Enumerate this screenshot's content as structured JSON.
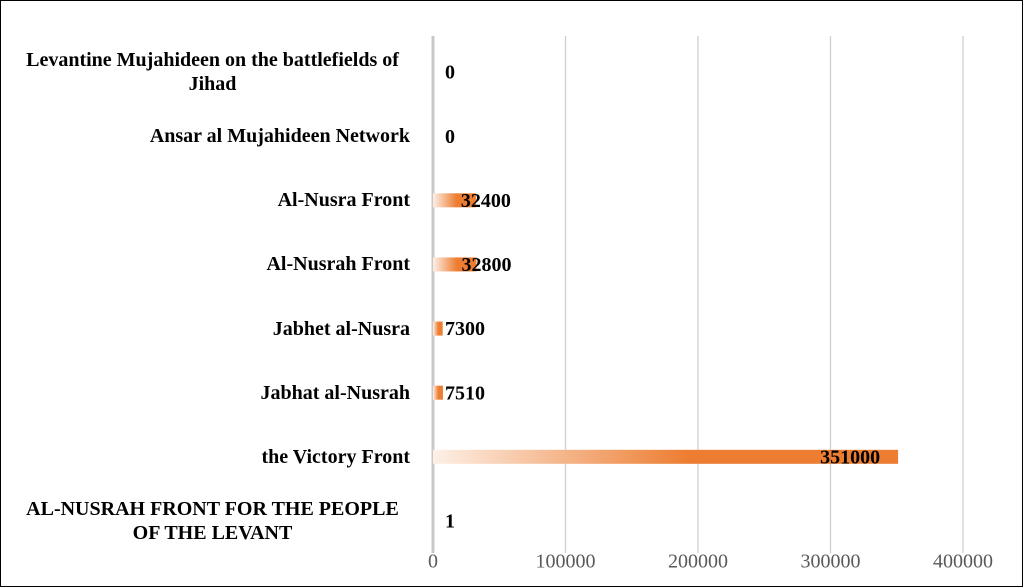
{
  "chart_data": {
    "type": "bar",
    "orientation": "horizontal",
    "categories": [
      "Levantine Mujahideen on the battlefields of Jihad",
      "Ansar al Mujahideen Network",
      "Al-Nusra Front",
      "Al-Nusrah Front",
      "Jabhet al-Nusra",
      "Jabhat al-Nusrah",
      "the Victory Front",
      "AL-NUSRAH FRONT FOR THE PEOPLE OF THE LEVANT"
    ],
    "values": [
      0,
      0,
      32400,
      32800,
      7300,
      7510,
      351000,
      1
    ],
    "color": "#ed7d31",
    "xlim": [
      0,
      400000
    ],
    "xticks": [
      0,
      100000,
      200000,
      300000,
      400000
    ],
    "grid": true
  }
}
